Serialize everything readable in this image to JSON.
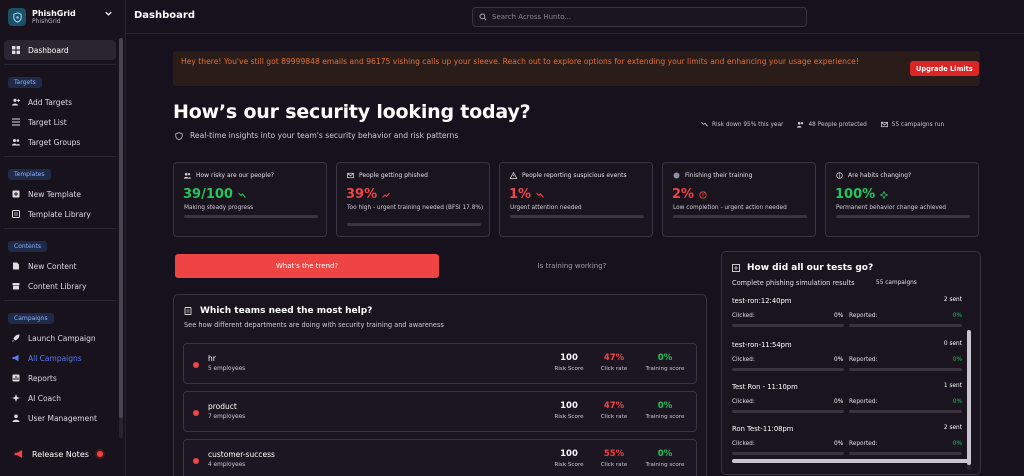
{
  "brand": {
    "name": "PhishGrid",
    "sub": "PhishGrid"
  },
  "topbar": {
    "title": "Dashboard",
    "search_placeholder": "Search Across Hunto..."
  },
  "sidebar": {
    "dashboard": "Dashboard",
    "sections": {
      "targets": "Targets",
      "templates": "Templates",
      "contents": "Contents",
      "campaigns": "Campaigns"
    },
    "targets": [
      "Add Targets",
      "Target List",
      "Target Groups"
    ],
    "templates": [
      "New Template",
      "Template Library"
    ],
    "contents": [
      "New Content",
      "Content Library"
    ],
    "campaigns": [
      "Launch Campaign",
      "All Campaigns",
      "Reports",
      "AI Coach",
      "User Management"
    ],
    "release_notes": "Release Notes"
  },
  "banner": {
    "text": "Hey there! You've still got 89999848 emails and 96175 vishing calls up your sleeve. Reach out to explore options for extending your limits and enhancing your usage experience!",
    "button": "Upgrade Limits"
  },
  "hero": {
    "title": "How’s our security looking today?",
    "subtitle": "Real-time insights into your team's security behavior and risk patterns"
  },
  "stats": [
    "Risk down 95% this year",
    "48 People protected",
    "55 campaigns run"
  ],
  "cards": [
    {
      "title": "How risky are our people?",
      "value": "39/100",
      "desc": "Making steady progress",
      "color": "#22c55e",
      "icon": "users-icon",
      "trend": "trend-down-icon"
    },
    {
      "title": "People getting phished",
      "value": "39%",
      "desc": "Too high - urgent training needed (BFSI 17.8%)",
      "color": "#ef4444",
      "icon": "mail-icon",
      "trend": "trend-up-icon"
    },
    {
      "title": "People reporting suspicious events",
      "value": "1%",
      "desc": "Urgent attention needed",
      "color": "#ef4444",
      "icon": "warning-icon",
      "trend": "trend-down-icon"
    },
    {
      "title": "Finishing their training",
      "value": "2%",
      "desc": "Low completion - urgent action needed",
      "color": "#ef4444",
      "icon": "graduation-icon",
      "trend": "alert-icon"
    },
    {
      "title": "Are habits changing?",
      "value": "100%",
      "desc": "Permanent behavior change achieved",
      "color": "#22c55e",
      "icon": "brain-icon",
      "trend": "sparkle-icon"
    }
  ],
  "tabs": {
    "active": "What's the trend?",
    "inactive": "Is training working?"
  },
  "teams": {
    "title": "Which teams need the most help?",
    "subtitle": "See how different departments are doing with security training and awareness",
    "labels": {
      "risk": "Risk Score",
      "click": "Click rate",
      "training": "Training score"
    },
    "rows": [
      {
        "name": "hr",
        "employees": "5 employees",
        "risk": "100",
        "click": "47%",
        "training": "0%"
      },
      {
        "name": "product",
        "employees": "7 employees",
        "risk": "100",
        "click": "47%",
        "training": "0%"
      },
      {
        "name": "customer-success",
        "employees": "4 employees",
        "risk": "100",
        "click": "55%",
        "training": "0%"
      }
    ]
  },
  "tests": {
    "title": "How did all our tests go?",
    "subtitle": "Complete phishing simulation results",
    "count": "55 campaigns",
    "clicked_label": "Clicked:",
    "reported_label": "Reported:",
    "items": [
      {
        "name": "test-ron:12:40pm",
        "sent": "2 sent",
        "clicked": "0%",
        "reported": "0%"
      },
      {
        "name": "test-ron-11:54pm",
        "sent": "0 sent",
        "clicked": "0%",
        "reported": "0%"
      },
      {
        "name": "Test Ron - 11:10pm",
        "sent": "1 sent",
        "clicked": "0%",
        "reported": "0%"
      },
      {
        "name": "Ron Test-11:08pm",
        "sent": "2 sent",
        "clicked": "0%",
        "reported": "0%"
      }
    ]
  },
  "colors": {
    "accent": "#ef4444",
    "good": "#22c55e",
    "link": "#5b7cf0",
    "banner_text": "#e0703a"
  }
}
